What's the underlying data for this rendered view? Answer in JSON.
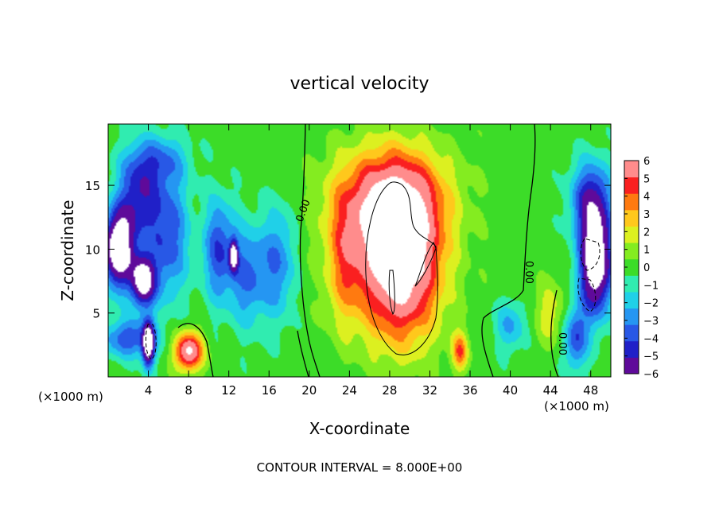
{
  "chart_data": {
    "type": "heatmap",
    "title": "vertical velocity",
    "xlabel": "X-coordinate",
    "ylabel": "Z-coordinate",
    "x_unit_left": "(×1000 m)",
    "x_unit_right": "(×1000 m)",
    "footer": "CONTOUR INTERVAL = 8.000E+00",
    "xlim": [
      0,
      50
    ],
    "ylim": [
      0,
      19.8
    ],
    "x_ticks": [
      4,
      8,
      12,
      16,
      20,
      24,
      28,
      32,
      36,
      40,
      44,
      48
    ],
    "y_ticks": [
      5,
      10,
      15
    ],
    "colorbar": {
      "min": -6,
      "max": 6,
      "labels": [
        "6",
        "5",
        "4",
        "3",
        "2",
        "1",
        "0",
        "−1",
        "−2",
        "−3",
        "−4",
        "−5",
        "−6"
      ],
      "colors": [
        "#5f0a9a",
        "#2020c8",
        "#2858e6",
        "#2596f2",
        "#20d0e8",
        "#30ecb0",
        "#3cdc28",
        "#84ec20",
        "#dcf020",
        "#ffc81c",
        "#ff7a10",
        "#fa2020",
        "#ff8c8c"
      ],
      "saturated_color": "#ffffff"
    },
    "contour_labels": [
      "0.00",
      "0.00",
      "0.00"
    ],
    "blobs": [
      {
        "x": 29,
        "z": 9,
        "w": 8.5,
        "sx": 4.0,
        "sz": 6.0
      },
      {
        "x": 28,
        "z": 14,
        "w": 5.0,
        "sx": 5.5,
        "sz": 4.0
      },
      {
        "x": 23.5,
        "z": 9,
        "w": 3.0,
        "sx": 2.0,
        "sz": 5.0
      },
      {
        "x": 8,
        "z": 2,
        "w": 7.0,
        "sx": 1.4,
        "sz": 1.5
      },
      {
        "x": 35,
        "z": 2,
        "w": 4.0,
        "sx": 0.8,
        "sz": 1.5
      },
      {
        "x": 44,
        "z": 5,
        "w": 2.0,
        "sx": 1.5,
        "sz": 2.5
      },
      {
        "x": 40,
        "z": 4,
        "w": -2.5,
        "sx": 1.5,
        "sz": 2.0
      },
      {
        "x": 3,
        "z": 14,
        "w": -4.5,
        "sx": 2.0,
        "sz": 3.5
      },
      {
        "x": 6,
        "z": 11,
        "w": -4.0,
        "sx": 2.0,
        "sz": 5.0
      },
      {
        "x": 11,
        "z": 10,
        "w": -4.0,
        "sx": 1.5,
        "sz": 4.0
      },
      {
        "x": 14,
        "z": 8,
        "w": -3.5,
        "sx": 2.0,
        "sz": 4.0
      },
      {
        "x": 17,
        "z": 9,
        "w": -3.0,
        "sx": 1.5,
        "sz": 4.5
      },
      {
        "x": 1,
        "z": 10,
        "w": -9.0,
        "sx": 1.5,
        "sz": 3.0
      },
      {
        "x": 3.5,
        "z": 7.5,
        "w": -8.0,
        "sx": 1.2,
        "sz": 2.0
      },
      {
        "x": 4,
        "z": 2.5,
        "w": -8.0,
        "sx": 0.6,
        "sz": 1.8
      },
      {
        "x": 12.5,
        "z": 9.5,
        "w": -6.0,
        "sx": 0.4,
        "sz": 1.2
      },
      {
        "x": 5,
        "z": 17,
        "w": -2.5,
        "sx": 3.0,
        "sz": 2.0
      },
      {
        "x": 48.5,
        "z": 9,
        "w": -9.0,
        "sx": 1.6,
        "sz": 4.0
      },
      {
        "x": 48,
        "z": 14,
        "w": -4.5,
        "sx": 2.0,
        "sz": 3.0
      },
      {
        "x": 46.5,
        "z": 3,
        "w": -4.0,
        "sx": 1.2,
        "sz": 2.5
      },
      {
        "x": 2,
        "z": 3,
        "w": -4.0,
        "sx": 2.5,
        "sz": 1.5
      }
    ]
  }
}
